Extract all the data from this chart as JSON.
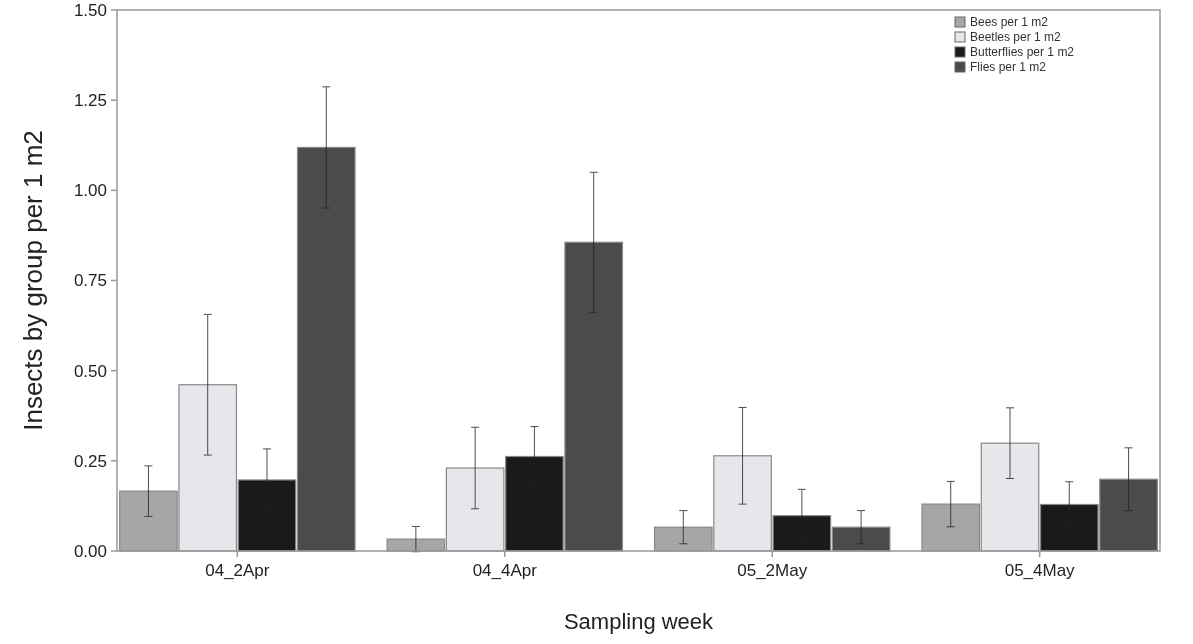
{
  "chart_data": {
    "type": "bar",
    "xlabel": "Sampling week",
    "ylabel": "Insects by group per 1 m2",
    "categories": [
      "04_2Apr",
      "04_4Apr",
      "05_2May",
      "05_4May"
    ],
    "series": [
      {
        "name": "Bees per 1 m2",
        "color": "#a6a6a6",
        "values": [
          0.166,
          0.033,
          0.066,
          0.13
        ],
        "errors": [
          0.07,
          0.035,
          0.046,
          0.063
        ]
      },
      {
        "name": "Beetles per 1 m2",
        "color": "#e8e6ea",
        "values": [
          0.461,
          0.23,
          0.264,
          0.299
        ],
        "errors": [
          0.195,
          0.113,
          0.134,
          0.098
        ]
      },
      {
        "name": "Butterflies per 1 m2",
        "color": "#1a1a1a",
        "values": [
          0.197,
          0.262,
          0.098,
          0.129
        ],
        "errors": [
          0.086,
          0.083,
          0.073,
          0.063
        ]
      },
      {
        "name": "Flies per 1 m2",
        "color": "#4a4c49",
        "values": [
          1.119,
          0.856,
          0.066,
          0.199
        ],
        "errors": [
          0.168,
          0.194,
          0.046,
          0.087
        ]
      }
    ],
    "ylim": [
      0,
      1.5
    ],
    "yticks": [
      {
        "value": 0,
        "label": "0.00"
      },
      {
        "value": 0.25,
        "label": "0.25"
      },
      {
        "value": 0.5,
        "label": "0.50"
      },
      {
        "value": 0.75,
        "label": "0.75"
      },
      {
        "value": 1,
        "label": "1.00"
      },
      {
        "value": 1.25,
        "label": "1.25"
      },
      {
        "value": 1.5,
        "label": "1.50"
      }
    ],
    "grid": false,
    "legend": "top right"
  }
}
